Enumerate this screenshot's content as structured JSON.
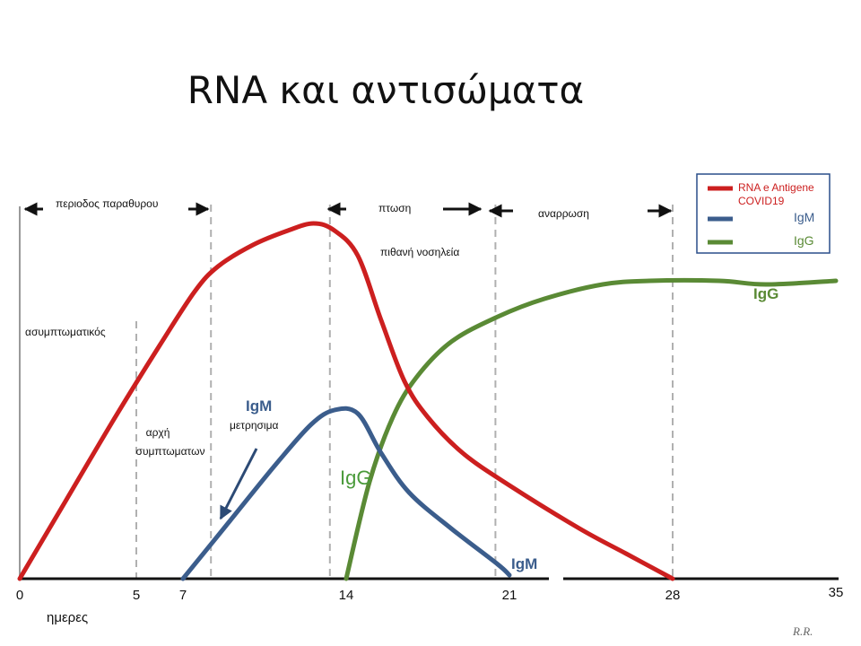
{
  "chart_data": {
    "type": "line",
    "title": "RNA και αντισώματα",
    "xlabel": "ημερες",
    "ylabel": "",
    "xlim": [
      0,
      35
    ],
    "x_ticks": [
      0,
      5,
      7,
      14,
      21,
      28,
      35
    ],
    "grid": false,
    "legend_position": "top-right",
    "series": [
      {
        "name": "RNA e Antigene COVID19",
        "color": "#cc1f1f",
        "points": [
          [
            0,
            0
          ],
          [
            2,
            0.22
          ],
          [
            4,
            0.44
          ],
          [
            6,
            0.65
          ],
          [
            7.5,
            0.8
          ],
          [
            8.5,
            0.87
          ],
          [
            10,
            0.93
          ],
          [
            11.5,
            0.97
          ],
          [
            12.6,
            0.99
          ],
          [
            13.5,
            0.97
          ],
          [
            14.5,
            0.9
          ],
          [
            15.5,
            0.72
          ],
          [
            16.5,
            0.55
          ],
          [
            17.5,
            0.45
          ],
          [
            19,
            0.35
          ],
          [
            21,
            0.26
          ],
          [
            24,
            0.14
          ],
          [
            26,
            0.07
          ],
          [
            28,
            0
          ]
        ]
      },
      {
        "name": "IgM",
        "color": "#3b5d8c",
        "points": [
          [
            7,
            0
          ],
          [
            9,
            0.16
          ],
          [
            11,
            0.32
          ],
          [
            12.5,
            0.43
          ],
          [
            13.5,
            0.47
          ],
          [
            14.5,
            0.46
          ],
          [
            15.5,
            0.35
          ],
          [
            16.7,
            0.24
          ],
          [
            18.5,
            0.14
          ],
          [
            20.5,
            0.04
          ],
          [
            21,
            0.01
          ]
        ]
      },
      {
        "name": "IgG",
        "color": "#5a8a35",
        "points": [
          [
            14,
            0
          ],
          [
            15,
            0.27
          ],
          [
            16,
            0.45
          ],
          [
            17,
            0.56
          ],
          [
            18.5,
            0.66
          ],
          [
            20.5,
            0.73
          ],
          [
            22.5,
            0.78
          ],
          [
            25,
            0.82
          ],
          [
            27,
            0.83
          ],
          [
            30,
            0.83
          ],
          [
            32,
            0.82
          ],
          [
            35,
            0.83
          ]
        ]
      }
    ],
    "vlines_dashed": [
      5,
      8.2,
      13.3,
      20.4,
      28
    ],
    "annotations": {
      "window_period": "περιοδος παραθυρου",
      "decline": "πτωση",
      "possible_hospitalization": "πιθανή νοσηλεία",
      "recovery": "αναρρωση",
      "asymptomatic": "ασυμπτωματικός",
      "symptom_onset_line1": "αρχή",
      "symptom_onset_line2": "συμπτωματων",
      "igm_label": "IgM",
      "igm_measurable": "μετρησιμα",
      "igg_label_mid": "IgG",
      "igm_label_end": "IgM",
      "igg_label_right": "IgG",
      "signature": "R.R."
    },
    "legend": [
      {
        "label_line1": "RNA e Antigene",
        "label_line2": "COVID19",
        "color": "#cc1f1f"
      },
      {
        "label_line1": "IgM",
        "label_line2": "",
        "color": "#3b5d8c"
      },
      {
        "label_line1": "IgG",
        "label_line2": "",
        "color": "#5a8a35"
      }
    ]
  }
}
